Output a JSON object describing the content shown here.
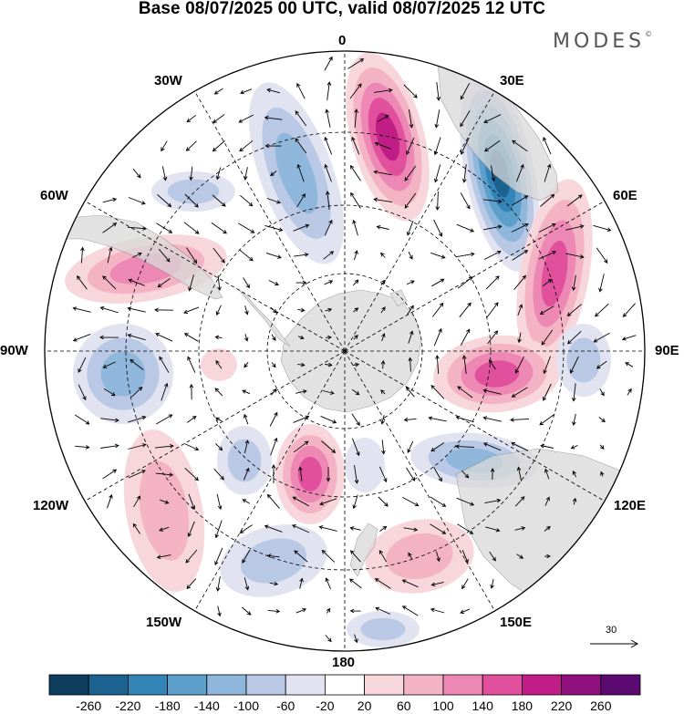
{
  "title": "Base 08/07/2025 00 UTC, valid 08/07/2025 12 UTC",
  "brand": {
    "name": "MODES",
    "mark": "©"
  },
  "longitude_labels": {
    "l0": "0",
    "l30e": "30E",
    "l60e": "60E",
    "l90e": "90E",
    "l120e": "120E",
    "l150e": "150E",
    "l180": "180",
    "l150w": "150W",
    "l120w": "120W",
    "l90w": "90W",
    "l60w": "60W",
    "l30w": "30W"
  },
  "reference_vector": {
    "label": "30"
  },
  "colorbar": {
    "labels": [
      "-260",
      "-220",
      "-180",
      "-140",
      "-100",
      "-60",
      "-20",
      "20",
      "60",
      "100",
      "140",
      "180",
      "220",
      "260"
    ],
    "colors": [
      "#0e3d5e",
      "#1c6290",
      "#3385b8",
      "#5c9fcb",
      "#8fb6db",
      "#b9c8e4",
      "#e2e3f1",
      "#ffffff",
      "#f7d7dc",
      "#f3b3c4",
      "#ec88b3",
      "#e0509c",
      "#c01e86",
      "#8f0f7c",
      "#5b0a72"
    ]
  },
  "colors": {
    "continent": "#d9d9d9",
    "graticule": "#000000"
  }
}
